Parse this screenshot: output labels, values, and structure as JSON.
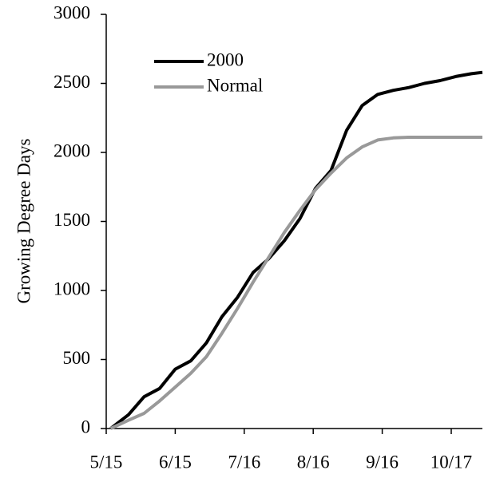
{
  "chart_data": {
    "type": "line",
    "y_label": "Growing Degree Days",
    "x": [
      "5/17",
      "5/25",
      "6/1",
      "6/8",
      "6/15",
      "6/22",
      "6/29",
      "7/6",
      "7/13",
      "7/20",
      "7/27",
      "8/3",
      "8/10",
      "8/17",
      "8/24",
      "8/31",
      "9/7",
      "9/14",
      "9/21",
      "9/28",
      "10/5",
      "10/12",
      "10/19",
      "10/26",
      "10/31"
    ],
    "series": [
      {
        "name": "2000",
        "color": "#000000",
        "values": [
          0,
          100,
          230,
          290,
          430,
          490,
          620,
          810,
          950,
          1130,
          1230,
          1360,
          1520,
          1740,
          1870,
          2160,
          2340,
          2420,
          2450,
          2470,
          2500,
          2520,
          2550,
          2570,
          2580
        ]
      },
      {
        "name": "Normal",
        "color": "#999999",
        "values": [
          0,
          60,
          110,
          200,
          300,
          400,
          520,
          690,
          870,
          1060,
          1240,
          1420,
          1580,
          1730,
          1850,
          1960,
          2040,
          2090,
          2105,
          2110,
          2110,
          2110,
          2110,
          2110,
          2110
        ]
      }
    ],
    "xlim": [
      "5/15",
      "10/31"
    ],
    "xticks": [
      "5/15",
      "6/15",
      "7/16",
      "8/16",
      "9/16",
      "10/17"
    ],
    "ylim": [
      0,
      3000
    ],
    "yticks": [
      0,
      500,
      1000,
      1500,
      2000,
      2500,
      3000
    ],
    "legend": "upper left"
  }
}
